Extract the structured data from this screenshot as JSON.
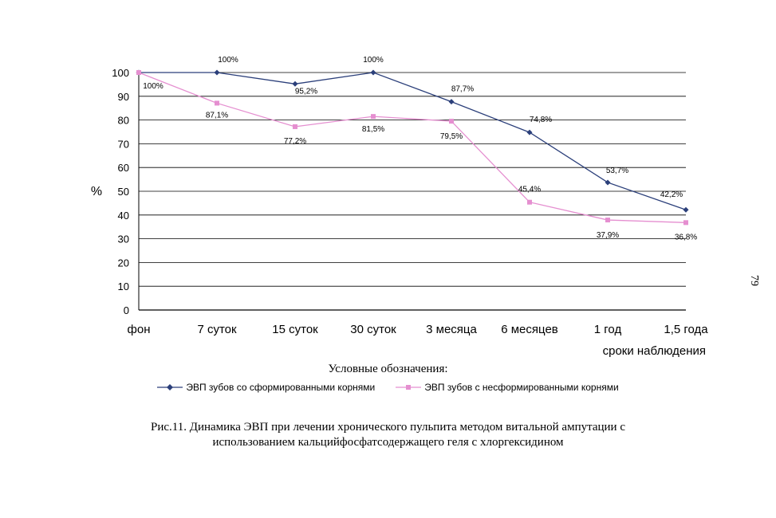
{
  "chart_data": {
    "type": "line",
    "ylabel": "%",
    "xlabel": "сроки наблюдения",
    "ylim": [
      0,
      100
    ],
    "yticks": [
      0,
      10,
      20,
      30,
      40,
      50,
      60,
      70,
      80,
      90,
      100
    ],
    "grid": true,
    "categories": [
      "фон",
      "7 суток",
      "15 суток",
      "30 суток",
      "3 месяца",
      "6 месяцев",
      "1 год",
      "1,5 года"
    ],
    "series": [
      {
        "name": "ЭВП зубов со сформированными корнями",
        "color": "#2b3f7a",
        "marker": "diamond",
        "values": [
          100,
          100,
          95.2,
          100,
          87.7,
          74.8,
          53.7,
          42.2
        ],
        "labels": [
          "",
          "100%",
          "95,2%",
          "100%",
          "87,7%",
          "74,8%",
          "53,7%",
          "42,2%"
        ]
      },
      {
        "name": "ЭВП зубов с несформированными корнями",
        "color": "#e58fd0",
        "marker": "square",
        "values": [
          100,
          87.1,
          77.2,
          81.5,
          79.5,
          45.4,
          37.9,
          36.8
        ],
        "labels": [
          "100%",
          "87,1%",
          "77,2%",
          "81,5%",
          "79,5%",
          "45,4%",
          "37,9%",
          "36,8%"
        ]
      }
    ]
  },
  "legend_title": "Условные обозначения:",
  "caption_line1": "Рис.11. Динамика ЭВП при лечении хронического пульпита методом витальной ампутации с",
  "caption_line2": "использованием кальцийфосфатсодержащего геля с хлоргексидином",
  "page_number": "79"
}
